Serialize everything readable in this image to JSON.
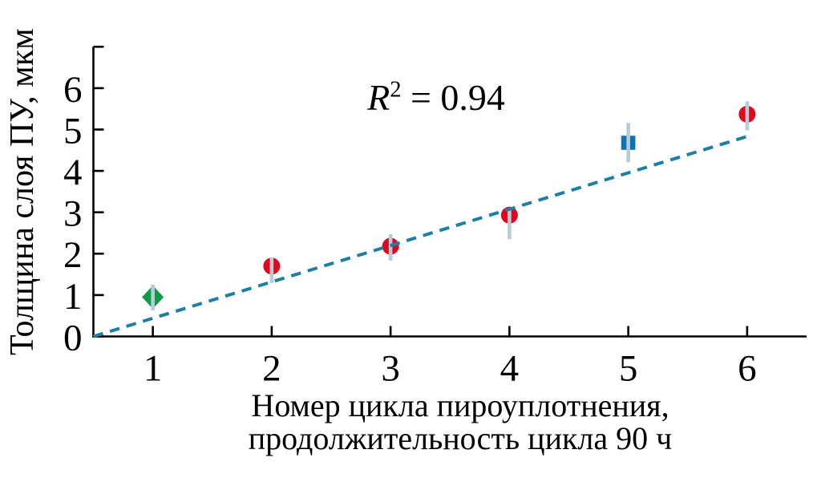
{
  "chart_data": {
    "type": "scatter",
    "ylabel": "Толщина слоя ПУ, мкм",
    "xlabel_line1": "Номер цикла пироуплотнения,",
    "xlabel_line2": "продолжительность цикла 90 ч",
    "annotation": {
      "r_var": "R",
      "r_exp": "2",
      "r_rest": " = 0.94"
    },
    "xlim": [
      0.5,
      6.5
    ],
    "ylim": [
      0,
      7
    ],
    "x_ticks": [
      1,
      2,
      3,
      4,
      5,
      6
    ],
    "y_ticks": [
      0,
      1,
      2,
      3,
      4,
      5,
      6,
      7
    ],
    "y_tick_labels": [
      "0",
      "1",
      "2",
      "3",
      "4",
      "5",
      "6",
      ""
    ],
    "grid": false,
    "legend": "none",
    "points": [
      {
        "x": 1,
        "y": 0.95,
        "err_up": 0.3,
        "err_down": 0.32,
        "marker": "diamond",
        "color": "#119a48"
      },
      {
        "x": 2,
        "y": 1.7,
        "err_up": 0.2,
        "err_down": 0.41,
        "marker": "circle",
        "color": "#e3061a"
      },
      {
        "x": 3,
        "y": 2.18,
        "err_up": 0.29,
        "err_down": 0.35,
        "marker": "circle",
        "color": "#e3061a"
      },
      {
        "x": 4,
        "y": 2.93,
        "err_up": 0.16,
        "err_down": 0.58,
        "marker": "circle",
        "color": "#e3061a"
      },
      {
        "x": 5,
        "y": 4.68,
        "err_up": 0.48,
        "err_down": 0.47,
        "marker": "square",
        "color": "#0f72b4"
      },
      {
        "x": 6,
        "y": 5.37,
        "err_up": 0.31,
        "err_down": 0.39,
        "marker": "circle",
        "color": "#e3061a"
      }
    ],
    "trend_line": {
      "x1": 0.5,
      "y1": 0.0,
      "x2": 6.02,
      "y2": 4.85,
      "color": "#1d7fa6"
    },
    "error_bar_color": "#b5cdda",
    "axis_color": "#000000",
    "background": "#ffffff"
  }
}
